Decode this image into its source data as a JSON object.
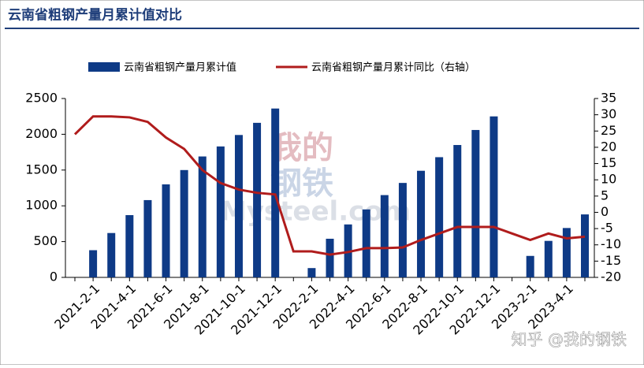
{
  "chart_data": {
    "type": "bar_line",
    "title": "云南省粗钢产量月累计值对比",
    "categories": [
      null,
      "2021-2-1",
      null,
      "2021-4-1",
      null,
      "2021-6-1",
      null,
      "2021-8-1",
      null,
      "2021-10-1",
      null,
      "2021-12-1",
      null,
      "2022-2-1",
      null,
      "2022-4-1",
      null,
      "2022-6-1",
      null,
      "2022-8-1",
      null,
      "2022-10-1",
      null,
      "2022-12-1",
      null,
      "2023-2-1",
      null,
      "2023-4-1",
      null
    ],
    "series": [
      {
        "name": "云南省粗钢产量月累计值",
        "type": "bar",
        "color": "#0e3a86",
        "values": [
          null,
          380,
          620,
          870,
          1080,
          1300,
          1500,
          1690,
          1830,
          1990,
          2160,
          2360,
          null,
          130,
          540,
          740,
          950,
          1150,
          1320,
          1490,
          1680,
          1850,
          2060,
          2250,
          null,
          300,
          510,
          690,
          880
        ]
      },
      {
        "name": "云南省粗钢产量月累计同比（右轴）",
        "type": "line",
        "axis": "y2",
        "color": "#b01c1c",
        "values": [
          24,
          29.5,
          29.5,
          29.2,
          27.8,
          23,
          19.5,
          13,
          9,
          7,
          6,
          5.5,
          -12,
          -12,
          -13,
          -12.2,
          -11,
          -11,
          -10.8,
          -8.5,
          -6.5,
          -4.5,
          -4.5,
          -4.5,
          -6.5,
          -8.5,
          -6.5,
          -8,
          -7.5
        ]
      }
    ],
    "ylim": [
      0,
      2500
    ],
    "yticks": [
      0,
      500,
      1000,
      1500,
      2000,
      2500
    ],
    "y2lim": [
      -20,
      35
    ],
    "y2ticks": [
      -20,
      -15,
      -10,
      -5,
      0,
      5,
      10,
      15,
      20,
      25,
      30,
      35
    ],
    "watermarks": [
      "我的",
      "钢铁",
      "Mysteel.com",
      "知乎 @我的钢铁"
    ]
  }
}
